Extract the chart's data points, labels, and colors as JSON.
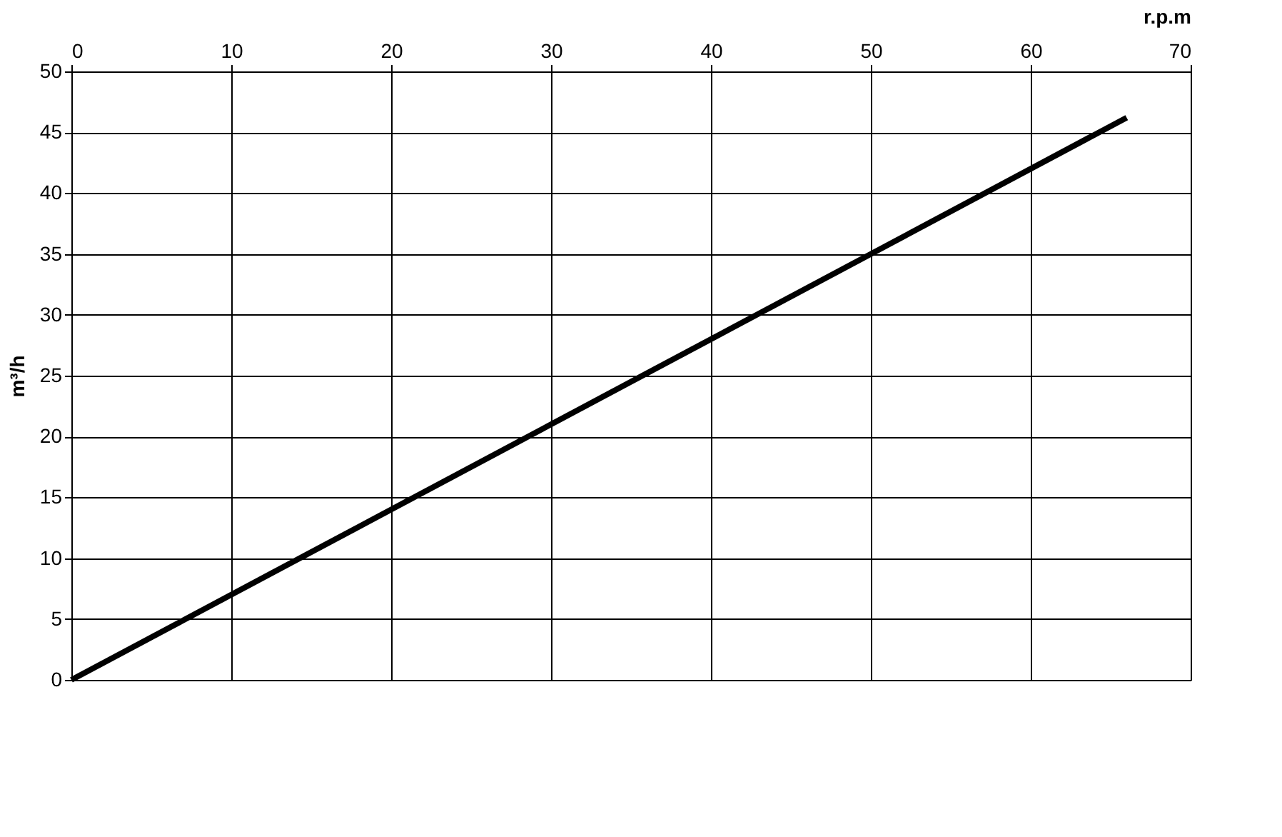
{
  "chart_data": {
    "type": "line",
    "xlabel": "r.p.m",
    "ylabel": "m³/h",
    "x": [
      0,
      66
    ],
    "series": [
      {
        "color": "#000000",
        "values": [
          0,
          46.2
        ]
      }
    ],
    "xlim": [
      0,
      70
    ],
    "xticks": [
      0,
      10,
      20,
      30,
      40,
      50,
      60,
      70
    ],
    "ylim": [
      0,
      50
    ],
    "yticks": [
      0,
      5,
      10,
      15,
      20,
      25,
      30,
      35,
      40,
      45,
      50
    ],
    "grid": true,
    "marker": "none",
    "line_style": "solid"
  }
}
